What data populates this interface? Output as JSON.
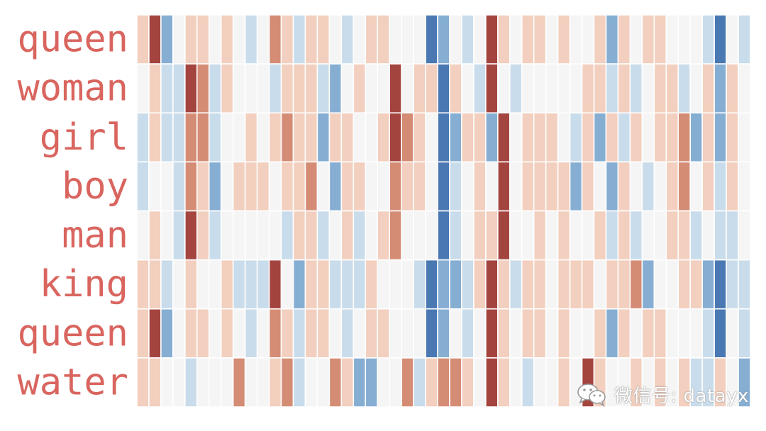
{
  "chart_data": {
    "type": "heatmap",
    "rows": [
      "queen",
      "woman",
      "girl",
      "boy",
      "man",
      "king",
      "queen",
      "water"
    ],
    "colormap": "RdBu (diverging, 5 levels)",
    "levels": [
      2,
      1,
      0,
      -1,
      -2
    ],
    "colors": {
      "2": "#a4443f",
      "1": "#d48c74",
      "0.5": "#f2cfbe",
      "0": "#f5f5f5",
      "-0.5": "#c9dceb",
      "-1": "#86aed3",
      "-2": "#4a78b2"
    },
    "values": [
      [
        0.5,
        2,
        -1,
        0,
        0.5,
        0.5,
        0,
        0.5,
        0,
        -0.5,
        0,
        1,
        0.5,
        -0.5,
        0.5,
        0.5,
        0,
        -0.5,
        0,
        0.5,
        0.5,
        0,
        0,
        0,
        -2,
        -1,
        0,
        -0.5,
        0,
        2,
        0.5,
        0,
        0.5,
        0.5,
        0,
        0.5,
        0,
        0,
        0.5,
        -1,
        0.5,
        0,
        0.5,
        0.5,
        0,
        0,
        0,
        -0.5,
        -2,
        0,
        -0.5
      ],
      [
        0,
        0.5,
        -0.5,
        -0.5,
        2,
        1,
        -0.5,
        0.5,
        0,
        0,
        0,
        -0.5,
        0.5,
        0.5,
        0.5,
        -0.5,
        -1,
        0,
        0.5,
        0,
        0,
        2,
        0,
        0.5,
        0.5,
        -2,
        0.5,
        0,
        -0.5,
        2,
        0,
        -0.5,
        0,
        0,
        0,
        0,
        0,
        0.5,
        0.5,
        -0.5,
        0.5,
        -0.5,
        0,
        0.5,
        0.5,
        -0.5,
        0,
        0.5,
        -1,
        0.5,
        0
      ],
      [
        -0.5,
        0.5,
        -0.5,
        -0.5,
        1,
        1,
        -0.5,
        0,
        0,
        0.5,
        0,
        0.5,
        1,
        0.5,
        0.5,
        -1,
        0.5,
        0.5,
        0,
        0,
        0.5,
        2,
        1,
        0.5,
        0,
        -2,
        -1,
        0.5,
        0.5,
        -1,
        2,
        0,
        0.5,
        0.5,
        0.5,
        0,
        -0.5,
        0.5,
        -1,
        0.5,
        -0.5,
        0.5,
        0,
        0.5,
        0.5,
        1,
        -1,
        0.5,
        -1,
        0.5,
        0
      ],
      [
        -0.5,
        0,
        0,
        -0.5,
        1,
        0.5,
        -1,
        0,
        0.5,
        0.5,
        0.5,
        0,
        0.5,
        0.5,
        1,
        0,
        -1,
        0.5,
        0.5,
        0,
        0,
        1,
        0.5,
        0.5,
        0,
        -2,
        -0.5,
        0,
        0.5,
        0,
        2,
        0,
        0.5,
        0.5,
        0.5,
        0.5,
        -1,
        0.5,
        0,
        -1,
        0.5,
        0,
        -0.5,
        0,
        0.5,
        1,
        0,
        0.5,
        -0.5,
        0.5,
        0
      ],
      [
        0,
        0.5,
        0,
        -0.5,
        2,
        0.5,
        -0.5,
        0,
        0,
        0,
        0,
        0,
        -0.5,
        0.5,
        0.5,
        -0.5,
        0,
        0.5,
        -0.5,
        0,
        0.5,
        1,
        0,
        0,
        0,
        -2,
        -0.5,
        0,
        0.5,
        0.5,
        2,
        0,
        0,
        0.5,
        0,
        0.5,
        0,
        0,
        0.5,
        -0.5,
        0.5,
        -0.5,
        0,
        0,
        0.5,
        0.5,
        -0.5,
        0,
        -0.5,
        -0.5,
        0
      ],
      [
        0.5,
        0.5,
        -0.5,
        0,
        0.5,
        0,
        0,
        0.5,
        -0.5,
        -0.5,
        -0.5,
        2,
        0,
        -1,
        0.5,
        0.5,
        -0.5,
        -0.5,
        -0.5,
        0.5,
        0,
        0,
        0,
        -0.5,
        -2,
        -1,
        -1,
        -0.5,
        0.5,
        2,
        0.5,
        -0.5,
        0.5,
        0.5,
        0,
        0.5,
        0.5,
        0.5,
        0,
        0.5,
        0.5,
        1,
        -1,
        0,
        0,
        0.5,
        0.5,
        -1,
        -2,
        -0.5,
        -0.5
      ],
      [
        0.5,
        2,
        -1,
        0,
        0.5,
        0.5,
        0,
        0.5,
        0,
        -0.5,
        0,
        1,
        0.5,
        -0.5,
        0.5,
        0.5,
        0,
        -0.5,
        0,
        0.5,
        0.5,
        0,
        0,
        0,
        -2,
        -1,
        0,
        -0.5,
        0,
        2,
        0.5,
        0,
        0.5,
        0.5,
        0,
        0.5,
        0,
        0,
        0.5,
        -1,
        0.5,
        0,
        0.5,
        0.5,
        0,
        0,
        0,
        -0.5,
        -2,
        0,
        -0.5
      ],
      [
        0.5,
        0.5,
        0,
        0,
        -0.5,
        0,
        0,
        0,
        1,
        0,
        0,
        0.5,
        1,
        -0.5,
        0,
        0,
        1,
        0.5,
        -1,
        -1,
        0,
        0,
        1,
        -0.5,
        0.5,
        1,
        1,
        0.5,
        0,
        2,
        0.5,
        0,
        -0.5,
        0,
        0,
        0.5,
        0,
        2,
        0.5,
        0,
        0,
        0.5,
        0,
        0.5,
        0,
        0.5,
        -0.5,
        -0.5,
        0.5,
        0,
        -1
      ]
    ]
  },
  "watermark": {
    "text": "微信号: datayx",
    "icon": "wechat-icon"
  }
}
